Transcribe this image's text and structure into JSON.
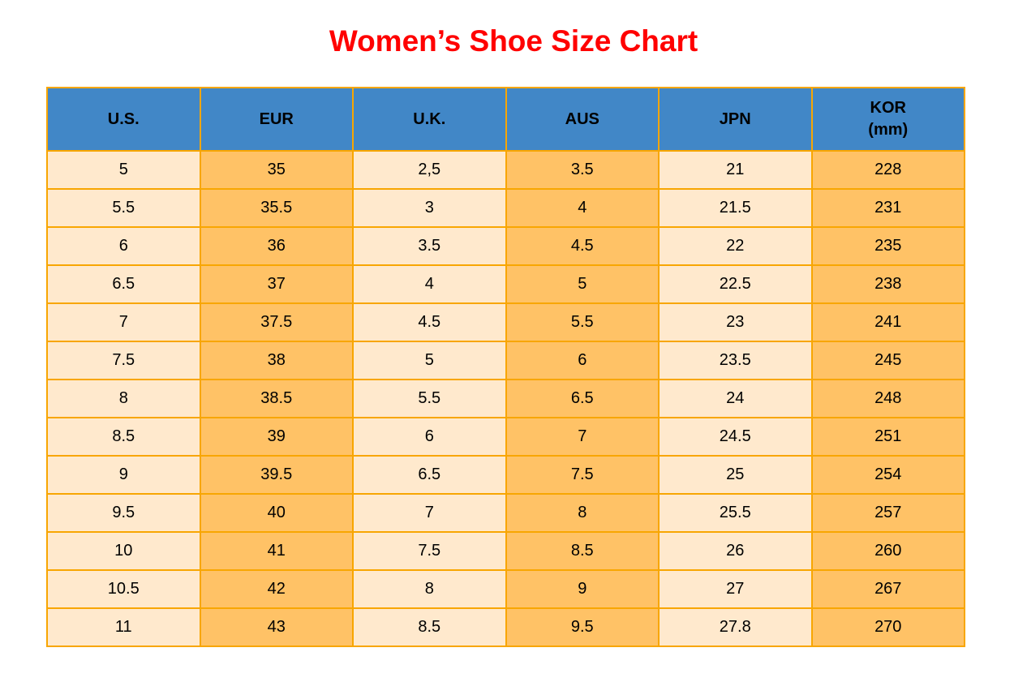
{
  "page": {
    "title": "Women’s Shoe Size Chart"
  },
  "colors": {
    "title_color": "#FF0000",
    "header_bg": "#4187C7",
    "cell_cream": "#FFE9CD",
    "cell_orange": "#FFC266",
    "grid_border": "#F8A602",
    "text_color": "#000000"
  },
  "table": {
    "headers": [
      {
        "label": "U.S."
      },
      {
        "label": "EUR"
      },
      {
        "label": "U.K."
      },
      {
        "label": "AUS"
      },
      {
        "label": "JPN"
      },
      {
        "line1": "KOR",
        "line2": "(mm)"
      }
    ]
  },
  "chart_data": {
    "type": "table",
    "title": "Women’s Shoe Size Chart",
    "columns": [
      "U.S.",
      "EUR",
      "U.K.",
      "AUS",
      "JPN",
      "KOR (mm)"
    ],
    "rows": [
      [
        "5",
        "35",
        "2,5",
        "3.5",
        "21",
        "228"
      ],
      [
        "5.5",
        "35.5",
        "3",
        "4",
        "21.5",
        "231"
      ],
      [
        "6",
        "36",
        "3.5",
        "4.5",
        "22",
        "235"
      ],
      [
        "6.5",
        "37",
        "4",
        "5",
        "22.5",
        "238"
      ],
      [
        "7",
        "37.5",
        "4.5",
        "5.5",
        "23",
        "241"
      ],
      [
        "7.5",
        "38",
        "5",
        "6",
        "23.5",
        "245"
      ],
      [
        "8",
        "38.5",
        "5.5",
        "6.5",
        "24",
        "248"
      ],
      [
        "8.5",
        "39",
        "6",
        "7",
        "24.5",
        "251"
      ],
      [
        "9",
        "39.5",
        "6.5",
        "7.5",
        "25",
        "254"
      ],
      [
        "9.5",
        "40",
        "7",
        "8",
        "25.5",
        "257"
      ],
      [
        "10",
        "41",
        "7.5",
        "8.5",
        "26",
        "260"
      ],
      [
        "10.5",
        "42",
        "8",
        "9",
        "27",
        "267"
      ],
      [
        "11",
        "43",
        "8.5",
        "9.5",
        "27.8",
        "270"
      ]
    ],
    "layout": {
      "column_fill_pattern": [
        "cream",
        "orange",
        "cream",
        "orange",
        "cream",
        "orange"
      ],
      "header_text_color": "#000000",
      "grid": true
    }
  }
}
